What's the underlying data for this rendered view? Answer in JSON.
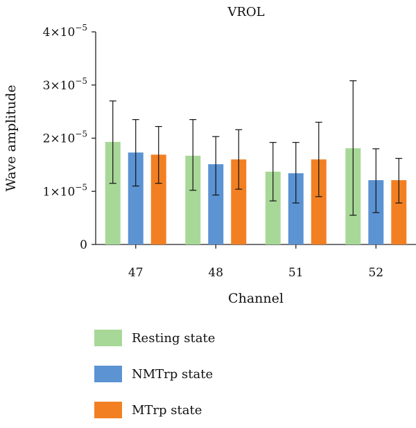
{
  "chart_data": {
    "type": "bar",
    "title": "VROL",
    "xlabel": "Channel",
    "ylabel": "Wave amplitude",
    "categories": [
      "47",
      "48",
      "51",
      "52"
    ],
    "ylim": [
      0,
      4e-05
    ],
    "yticks": [
      0,
      1e-05,
      2e-05,
      3e-05,
      4e-05
    ],
    "yticks_base": "×10",
    "yticks_exp": "−5",
    "series": [
      {
        "name": "Resting state",
        "color": "#a8d897",
        "values": [
          1.93e-05,
          1.67e-05,
          1.37e-05,
          1.81e-05
        ],
        "err_low": [
          1.15e-05,
          1.02e-05,
          8.2e-06,
          5.5e-06
        ],
        "err_high": [
          2.7e-05,
          2.35e-05,
          1.92e-05,
          3.08e-05
        ]
      },
      {
        "name": "NMTrp state",
        "color": "#5b93d3",
        "values": [
          1.73e-05,
          1.51e-05,
          1.34e-05,
          1.21e-05
        ],
        "err_low": [
          1.1e-05,
          9.3e-06,
          7.8e-06,
          6e-06
        ],
        "err_high": [
          2.35e-05,
          2.03e-05,
          1.92e-05,
          1.8e-05
        ]
      },
      {
        "name": "MTrp state",
        "color": "#f28023",
        "values": [
          1.69e-05,
          1.6e-05,
          1.6e-05,
          1.21e-05
        ],
        "err_low": [
          1.15e-05,
          1.04e-05,
          9e-06,
          7.8e-06
        ],
        "err_high": [
          2.22e-05,
          2.16e-05,
          2.3e-05,
          1.62e-05
        ]
      }
    ],
    "grid": false,
    "legend_position": "bottom"
  }
}
